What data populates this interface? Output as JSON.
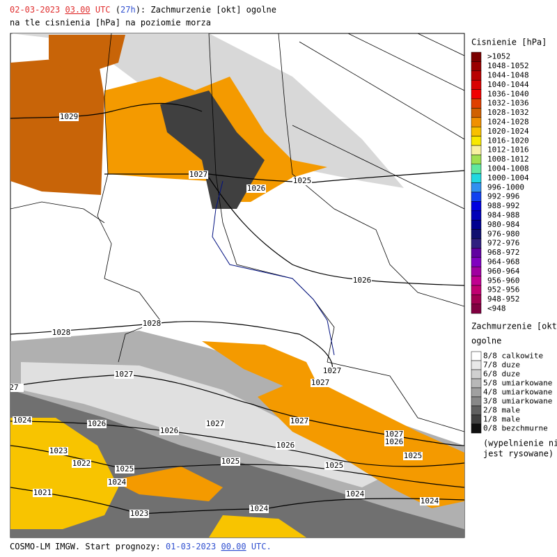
{
  "header": {
    "date": "02-03-2023",
    "hour": "03.00",
    "utc": "UTC",
    "lead_open": "(",
    "lead": "27h",
    "lead_close": ")",
    "title_rest": ": Zachmurzenie [okt] ogolne",
    "subtitle": "na tle cisnienia [hPa] na poziomie morza"
  },
  "footer": {
    "prefix": "COSMO-LM IMGW. Start prognozy:",
    "start_date": "01-03-2023",
    "start_hour": "00.00",
    "suffix": "UTC."
  },
  "pressure_legend": {
    "title": "Cisnienie [hPa]",
    "entries": [
      {
        "label": ">1052",
        "color": "#7a0000"
      },
      {
        "label": "1048-1052",
        "color": "#990000"
      },
      {
        "label": "1044-1048",
        "color": "#b80000"
      },
      {
        "label": "1040-1044",
        "color": "#d80000"
      },
      {
        "label": "1036-1040",
        "color": "#f00000"
      },
      {
        "label": "1032-1036",
        "color": "#e04000"
      },
      {
        "label": "1028-1032",
        "color": "#d06000"
      },
      {
        "label": "1024-1028",
        "color": "#f09000"
      },
      {
        "label": "1020-1024",
        "color": "#f8c000"
      },
      {
        "label": "1016-1020",
        "color": "#f8e800"
      },
      {
        "label": "1012-1016",
        "color": "#f8f0a0"
      },
      {
        "label": "1008-1012",
        "color": "#a0e050"
      },
      {
        "label": "1004-1008",
        "color": "#60e8a0"
      },
      {
        "label": "1000-1004",
        "color": "#20d8e0"
      },
      {
        "label": "996-1000",
        "color": "#3090f0"
      },
      {
        "label": "992-996",
        "color": "#1040f0"
      },
      {
        "label": "988-992",
        "color": "#0000e0"
      },
      {
        "label": "984-988",
        "color": "#0000b8"
      },
      {
        "label": "980-984",
        "color": "#000090"
      },
      {
        "label": "976-980",
        "color": "#101070"
      },
      {
        "label": "972-976",
        "color": "#302080"
      },
      {
        "label": "968-972",
        "color": "#6000a0"
      },
      {
        "label": "964-968",
        "color": "#8000c0"
      },
      {
        "label": "960-964",
        "color": "#a000a0"
      },
      {
        "label": "956-960",
        "color": "#c00090"
      },
      {
        "label": "952-956",
        "color": "#c00070"
      },
      {
        "label": "948-952",
        "color": "#a00050"
      },
      {
        "label": "<948",
        "color": "#800040"
      }
    ]
  },
  "cloud_legend": {
    "title": "Zachmurzenie [okt]",
    "subtitle": "ogolne",
    "entries": [
      {
        "label": "8/8 calkowite",
        "color": "#ffffff"
      },
      {
        "label": "7/8 duze",
        "color": "#e8e8e8"
      },
      {
        "label": "6/8 duze",
        "color": "#d0d0d0"
      },
      {
        "label": "5/8 umiarkowane",
        "color": "#b8b8b8"
      },
      {
        "label": "4/8 umiarkowane",
        "color": "#a0a0a0"
      },
      {
        "label": "3/8 umiarkowane",
        "color": "#888888"
      },
      {
        "label": "2/8 male",
        "color": "#606060"
      },
      {
        "label": "1/8 male",
        "color": "#404040"
      },
      {
        "label": "0/8 bezchmurne",
        "color": "#101010"
      }
    ],
    "note_line1": "(wypelnienie nie",
    "note_line2": "jest rysowane)"
  },
  "isobar_labels": [
    "1029",
    "1027",
    "1026",
    "1025",
    "1026",
    "1028",
    "1028",
    "1027",
    "1027",
    "1027",
    "27",
    "1024",
    "1026",
    "1027",
    "1027",
    "1026",
    "1026",
    "1027",
    "1026",
    "1025",
    "1023",
    "1022",
    "1025",
    "1025",
    "1025",
    "1024",
    "1021",
    "1024",
    "1024",
    "1023",
    "1024"
  ]
}
